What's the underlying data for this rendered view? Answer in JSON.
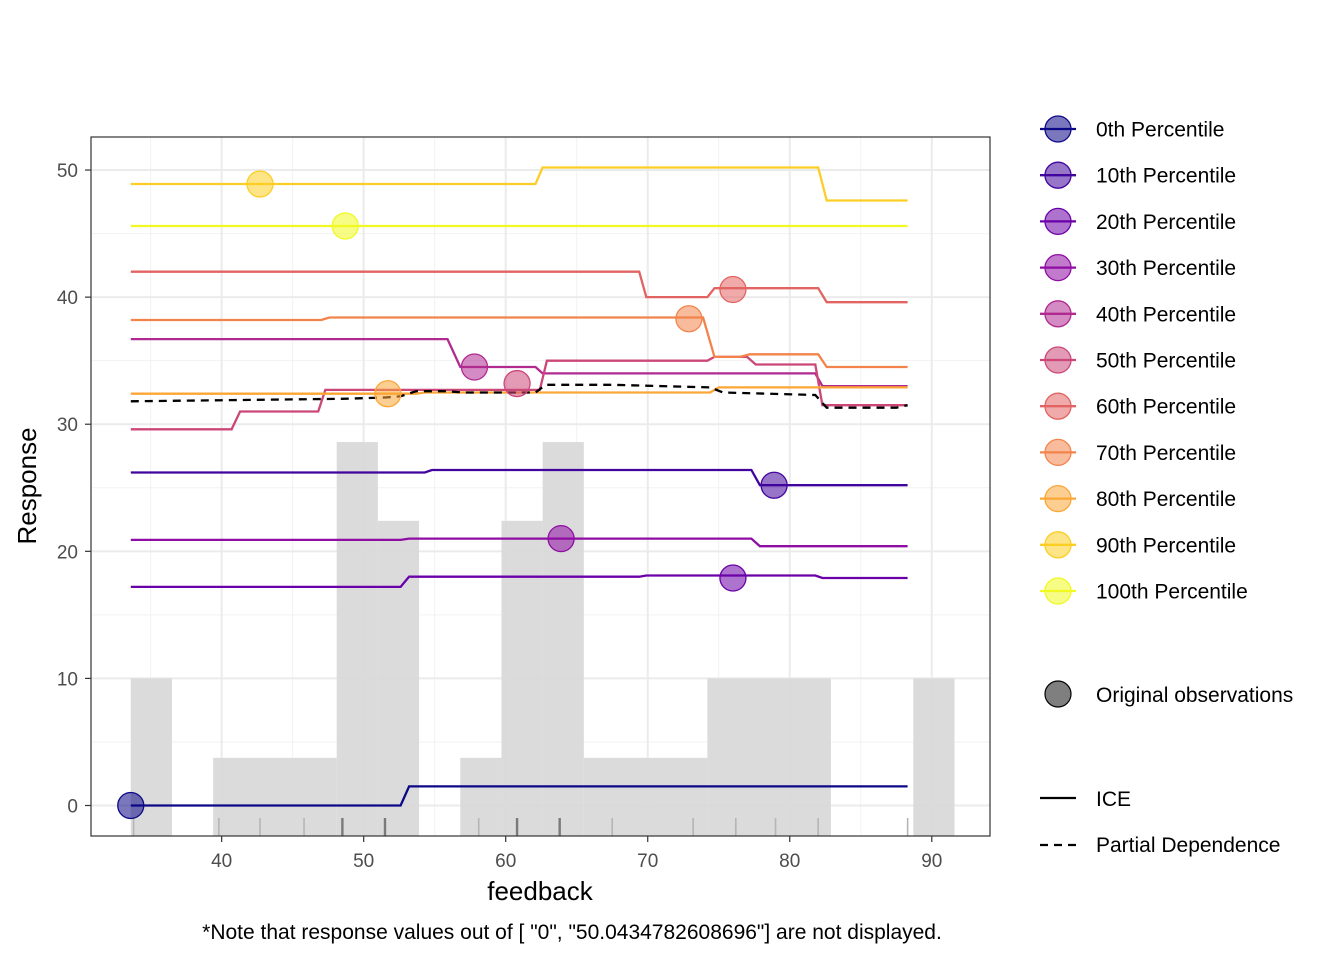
{
  "chart_data": {
    "type": "line",
    "xlabel": "feedback",
    "ylabel": "Response",
    "xlim": [
      30.8,
      94.1
    ],
    "ylim": [
      -2.4,
      52.6
    ],
    "x_ticks": [
      40,
      50,
      60,
      70,
      80,
      90
    ],
    "y_ticks": [
      0,
      10,
      20,
      30,
      40,
      50
    ],
    "x_tick_labels": [
      "40",
      "50",
      "60",
      "70",
      "80",
      "90"
    ],
    "y_tick_labels": [
      "0",
      "10",
      "20",
      "30",
      "40",
      "50"
    ],
    "grid": true,
    "legend_position": "right",
    "note": "*Note that response values out of [ \"0\",  \"50.0434782608696\"] are not displayed.",
    "histogram": {
      "bins": [
        {
          "x0": 33.6,
          "x1": 36.5,
          "height": 10
        },
        {
          "x0": 36.5,
          "x1": 39.4,
          "height": 0
        },
        {
          "x0": 39.4,
          "x1": 48.1,
          "height": 3.75
        },
        {
          "x0": 48.1,
          "x1": 51.0,
          "height": 28.6
        },
        {
          "x0": 51.0,
          "x1": 53.9,
          "height": 22.4
        },
        {
          "x0": 53.9,
          "x1": 56.8,
          "height": 0
        },
        {
          "x0": 56.8,
          "x1": 59.7,
          "height": 3.75
        },
        {
          "x0": 59.7,
          "x1": 62.6,
          "height": 22.4
        },
        {
          "x0": 62.6,
          "x1": 65.5,
          "height": 28.6
        },
        {
          "x0": 65.5,
          "x1": 74.2,
          "height": 3.75
        },
        {
          "x0": 74.2,
          "x1": 82.9,
          "height": 10
        },
        {
          "x0": 82.9,
          "x1": 88.7,
          "height": 0
        },
        {
          "x0": 88.7,
          "x1": 91.6,
          "height": 10
        }
      ]
    },
    "rug_ticks": [
      33.8,
      39.8,
      42.7,
      45.8,
      48.5,
      51.5,
      58.1,
      60.8,
      63.8,
      67.5,
      73.2,
      76.2,
      79.0,
      82.0,
      88.3
    ],
    "rug_dark": [
      48.5,
      51.5,
      60.8,
      63.8
    ],
    "series": [
      {
        "name": "0th Percentile",
        "color": "#0D0887",
        "points": [
          [
            33.6,
            0
          ],
          [
            52.6,
            0
          ],
          [
            53.2,
            1.5
          ],
          [
            88.3,
            1.5
          ]
        ],
        "observation": [
          33.6,
          0
        ]
      },
      {
        "name": "10th Percentile",
        "color": "#41049D",
        "points": [
          [
            33.6,
            26.2
          ],
          [
            54.3,
            26.2
          ],
          [
            54.8,
            26.4
          ],
          [
            77.3,
            26.4
          ],
          [
            77.9,
            25.2
          ],
          [
            88.3,
            25.2
          ]
        ],
        "observation": [
          78.9,
          25.2
        ]
      },
      {
        "name": "20th Percentile",
        "color": "#6A00A8",
        "points": [
          [
            33.6,
            17.2
          ],
          [
            52.6,
            17.2
          ],
          [
            53.2,
            18.0
          ],
          [
            69.4,
            18.0
          ],
          [
            69.9,
            18.1
          ],
          [
            81.8,
            18.1
          ],
          [
            82.3,
            17.9
          ],
          [
            88.3,
            17.9
          ]
        ],
        "observation": [
          76.0,
          17.9
        ]
      },
      {
        "name": "30th Percentile",
        "color": "#8F0DA4",
        "points": [
          [
            33.6,
            20.9
          ],
          [
            52.6,
            20.9
          ],
          [
            53.2,
            21.0
          ],
          [
            77.3,
            21.0
          ],
          [
            77.9,
            20.4
          ],
          [
            88.3,
            20.4
          ]
        ],
        "observation": [
          63.9,
          21.0
        ]
      },
      {
        "name": "40th Percentile",
        "color": "#B12A90",
        "points": [
          [
            33.6,
            36.7
          ],
          [
            55.9,
            36.7
          ],
          [
            56.8,
            34.5
          ],
          [
            62.1,
            34.5
          ],
          [
            62.6,
            34.0
          ],
          [
            76.9,
            34.0
          ],
          [
            81.8,
            34.0
          ],
          [
            82.3,
            33.0
          ],
          [
            88.3,
            33.0
          ]
        ],
        "observation": [
          57.8,
          34.5
        ]
      },
      {
        "name": "50th Percentile",
        "color": "#CC4778",
        "points": [
          [
            33.6,
            29.6
          ],
          [
            40.7,
            29.6
          ],
          [
            41.3,
            31.0
          ],
          [
            46.8,
            31.0
          ],
          [
            47.3,
            32.7
          ],
          [
            62.4,
            32.7
          ],
          [
            62.9,
            35.0
          ],
          [
            74.2,
            35.0
          ],
          [
            74.7,
            35.3
          ],
          [
            77.0,
            35.3
          ],
          [
            77.6,
            34.7
          ],
          [
            81.8,
            34.7
          ],
          [
            82.3,
            31.5
          ],
          [
            88.3,
            31.5
          ]
        ],
        "observation": [
          60.8,
          33.2
        ]
      },
      {
        "name": "60th Percentile",
        "color": "#E16462",
        "points": [
          [
            33.6,
            42.0
          ],
          [
            69.4,
            42.0
          ],
          [
            69.9,
            40.0
          ],
          [
            74.2,
            40.0
          ],
          [
            74.7,
            40.7
          ],
          [
            82.0,
            40.7
          ],
          [
            82.6,
            39.6
          ],
          [
            88.3,
            39.6
          ]
        ],
        "observation": [
          76.0,
          40.6
        ]
      },
      {
        "name": "70th Percentile",
        "color": "#F2844B",
        "points": [
          [
            33.6,
            38.2
          ],
          [
            47.0,
            38.2
          ],
          [
            47.6,
            38.4
          ],
          [
            73.9,
            38.4
          ],
          [
            74.7,
            35.3
          ],
          [
            76.5,
            35.3
          ],
          [
            77.2,
            35.5
          ],
          [
            82.0,
            35.5
          ],
          [
            82.6,
            34.5
          ],
          [
            88.3,
            34.5
          ]
        ],
        "observation": [
          72.9,
          38.3
        ]
      },
      {
        "name": "80th Percentile",
        "color": "#FCA636",
        "points": [
          [
            33.6,
            32.4
          ],
          [
            53.7,
            32.4
          ],
          [
            54.3,
            32.5
          ],
          [
            74.4,
            32.5
          ],
          [
            75.0,
            32.9
          ],
          [
            88.3,
            32.9
          ]
        ],
        "observation": [
          51.7,
          32.4
        ]
      },
      {
        "name": "90th Percentile",
        "color": "#FCCE25",
        "points": [
          [
            33.6,
            48.9
          ],
          [
            62.1,
            48.9
          ],
          [
            62.6,
            50.2
          ],
          [
            82.0,
            50.2
          ],
          [
            82.6,
            47.6
          ],
          [
            88.3,
            47.6
          ]
        ],
        "observation": [
          42.7,
          48.9
        ]
      },
      {
        "name": "100th Percentile",
        "color": "#F0F921",
        "points": [
          [
            33.6,
            45.6
          ],
          [
            88.3,
            45.6
          ]
        ],
        "observation": [
          48.7,
          45.6
        ]
      }
    ],
    "partial_dependence": {
      "name": "Partial Dependence",
      "color": "#000000",
      "points": [
        [
          33.6,
          31.8
        ],
        [
          48.5,
          32.0
        ],
        [
          51.5,
          32.1
        ],
        [
          52.6,
          32.2
        ],
        [
          53.7,
          32.6
        ],
        [
          55.9,
          32.6
        ],
        [
          57.0,
          32.5
        ],
        [
          62.1,
          32.5
        ],
        [
          62.8,
          33.1
        ],
        [
          67.5,
          33.1
        ],
        [
          74.4,
          32.9
        ],
        [
          75.3,
          32.5
        ],
        [
          81.8,
          32.3
        ],
        [
          82.6,
          31.3
        ],
        [
          87.5,
          31.3
        ],
        [
          88.3,
          31.5
        ]
      ]
    },
    "legend": {
      "series_labels": [
        "0th Percentile",
        "10th Percentile",
        "20th Percentile",
        "30th Percentile",
        "40th Percentile",
        "50th Percentile",
        "60th Percentile",
        "70th Percentile",
        "80th Percentile",
        "90th Percentile",
        "100th Percentile"
      ],
      "observations_label": "Original observations",
      "ice_label": "ICE",
      "pd_label": "Partial Dependence"
    }
  }
}
